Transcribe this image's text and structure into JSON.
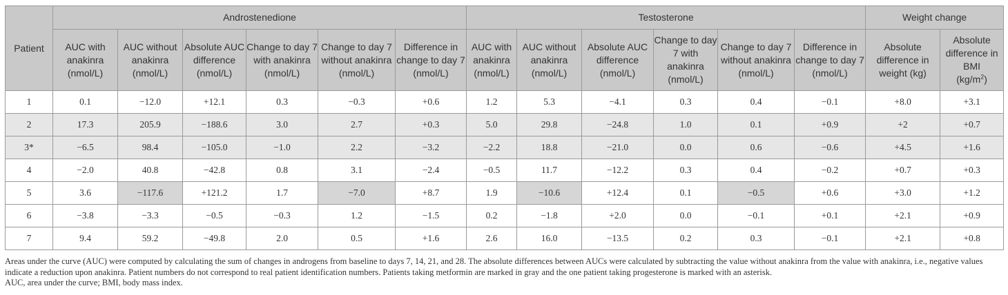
{
  "headers": {
    "patient": "Patient",
    "groups": [
      "Androstenedione",
      "Testosterone",
      "Weight change"
    ],
    "andro": [
      "AUC with anakinra (nmol/L)",
      "AUC without anakinra (nmol/L)",
      "Absolute AUC difference (nmol/L)",
      "Change to day 7 with anakinra (nmol/L)",
      "Change to day 7 without anakinra (nmol/L)",
      "Difference in change to day 7 (nmol/L)"
    ],
    "testo": [
      "AUC with anakinra (nmol/L)",
      "AUC without anakinra (nmol/L)",
      "Absolute AUC difference (nmol/L)",
      "Change to day 7 with anakinra (nmol/L)",
      "Change to day 7 without anakinra (nmol/L)",
      "Difference in change to day 7 (nmol/L)"
    ],
    "weight": [
      "Absolute difference in weight (kg)",
      "Absolute difference in BMI"
    ],
    "bmi_unit": "(kg/m",
    "bmi_sup": "2",
    "bmi_close": ")"
  },
  "rows": [
    {
      "patient": "1",
      "metformin": false,
      "cells": [
        "0.1",
        "−12.0",
        "+12.1",
        "0.3",
        "−0.3",
        "+0.6",
        "1.2",
        "5.3",
        "−4.1",
        "0.3",
        "0.4",
        "−0.1",
        "+8.0",
        "+3.1"
      ]
    },
    {
      "patient": "2",
      "metformin": true,
      "cells": [
        "17.3",
        "205.9",
        "−188.6",
        "3.0",
        "2.7",
        "+0.3",
        "5.0",
        "29.8",
        "−24.8",
        "1.0",
        "0.1",
        "+0.9",
        "+2",
        "+0.7"
      ]
    },
    {
      "patient": "3*",
      "metformin": true,
      "cells": [
        "−6.5",
        "98.4",
        "−105.0",
        "−1.0",
        "2.2",
        "−3.2",
        "−2.2",
        "18.8",
        "−21.0",
        "0.0",
        "0.6",
        "−0.6",
        "+4.5",
        "+1.6"
      ]
    },
    {
      "patient": "4",
      "metformin": false,
      "cells": [
        "−2.0",
        "40.8",
        "−42.8",
        "0.8",
        "3.1",
        "−2.4",
        "−0.5",
        "11.7",
        "−12.2",
        "0.3",
        "0.4",
        "−0.2",
        "+0.7",
        "+0.3"
      ]
    },
    {
      "patient": "5",
      "metformin": false,
      "cells": [
        "3.6",
        "−117.6",
        "+121.2",
        "1.7",
        "−7.0",
        "+8.7",
        "1.9",
        "−10.6",
        "+12.4",
        "0.1",
        "−0.5",
        "+0.6",
        "+3.0",
        "+1.2"
      ]
    },
    {
      "patient": "6",
      "metformin": false,
      "cells": [
        "−3.8",
        "−3.3",
        "−0.5",
        "−0.3",
        "1.2",
        "−1.5",
        "0.2",
        "−1.8",
        "+2.0",
        "0.0",
        "−0.1",
        "+0.1",
        "+2.1",
        "+0.9"
      ]
    },
    {
      "patient": "7",
      "metformin": false,
      "cells": [
        "9.4",
        "59.2",
        "−49.8",
        "2.0",
        "0.5",
        "+1.6",
        "2.6",
        "16.0",
        "−13.5",
        "0.2",
        "0.3",
        "−0.1",
        "+2.1",
        "+0.8"
      ]
    }
  ],
  "highlighted_cells": [
    {
      "row": 4,
      "col": 1
    },
    {
      "row": 4,
      "col": 4
    },
    {
      "row": 4,
      "col": 7
    },
    {
      "row": 4,
      "col": 10
    }
  ],
  "footnotes": [
    "Areas under the curve (AUC) were computed by calculating the sum of changes in androgens from baseline to days 7, 14, 21, and 28. The absolute differences between AUCs were calculated by subtracting the value without anakinra from the value with anakinra, i.e., negative values indicate a reduction upon anakinra. Patient numbers do not correspond to real patient identification numbers. Patients taking metformin are marked in gray and the one patient taking progesterone is marked with an asterisk.",
    "AUC, area under the curve; BMI, body mass index."
  ],
  "colors": {
    "header_bg": "#c9c9c9",
    "metformin_row": "#e6e6e6",
    "highlight_cell": "#d6d6d6",
    "border": "#9a9a9a"
  }
}
